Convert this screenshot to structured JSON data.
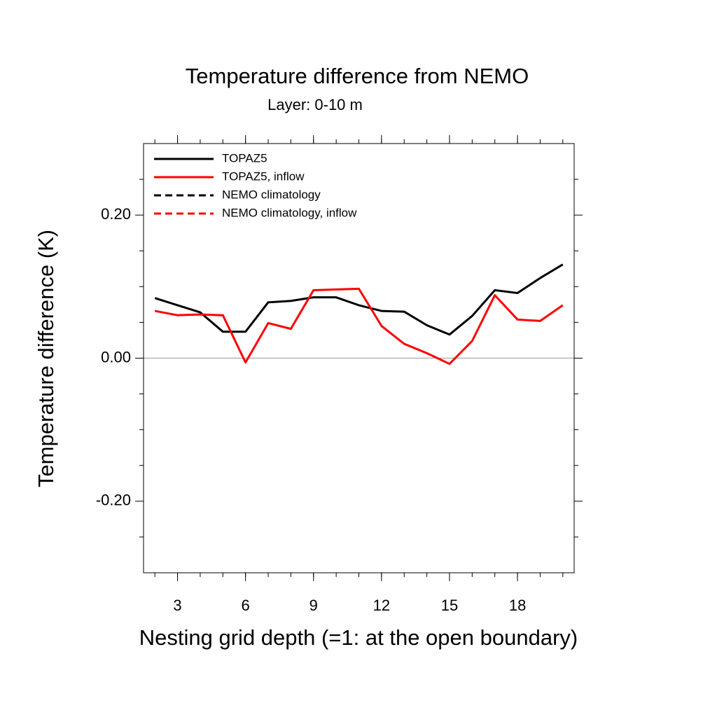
{
  "chart_data": {
    "type": "line",
    "title": "Temperature difference from NEMO",
    "subtitle": "Layer: 0-10 m",
    "x_label": "Nesting grid depth (=1: at the open boundary)",
    "y_label": "Temperature difference (K)",
    "x": [
      2,
      3,
      4,
      5,
      6,
      7,
      8,
      9,
      10,
      11,
      12,
      13,
      14,
      15,
      16,
      17,
      18,
      19,
      20
    ],
    "series": [
      {
        "name": "TOPAZ5",
        "color": "#000000",
        "dash": false,
        "values": [
          0.084,
          0.074,
          0.064,
          0.037,
          0.037,
          0.078,
          0.08,
          0.085,
          0.085,
          0.074,
          0.066,
          0.065,
          0.046,
          0.033,
          0.059,
          0.095,
          0.091,
          0.112,
          0.131
        ]
      },
      {
        "name": "TOPAZ5, inflow",
        "color": "#ff0000",
        "dash": false,
        "values": [
          0.066,
          0.06,
          0.061,
          0.06,
          -0.006,
          0.049,
          0.041,
          0.095,
          0.096,
          0.097,
          0.045,
          0.02,
          0.007,
          -0.008,
          0.024,
          0.088,
          0.054,
          0.052,
          0.074
        ]
      },
      {
        "name": "NEMO climatology",
        "color": "#000000",
        "dash": true,
        "values": [
          null,
          null,
          null,
          null,
          null,
          null,
          null,
          null,
          null,
          null,
          null,
          null,
          null,
          null,
          null,
          null,
          null,
          null,
          null
        ]
      },
      {
        "name": "NEMO climatology, inflow",
        "color": "#ff0000",
        "dash": true,
        "values": [
          null,
          null,
          null,
          null,
          null,
          null,
          null,
          null,
          null,
          null,
          null,
          null,
          null,
          null,
          null,
          null,
          null,
          null,
          null
        ]
      }
    ],
    "xlim": [
      1.5,
      20.5
    ],
    "xticks": [
      3,
      6,
      9,
      12,
      15,
      18
    ],
    "xminor_ticks": [
      2,
      3,
      4,
      5,
      6,
      7,
      8,
      9,
      10,
      11,
      12,
      13,
      14,
      15,
      16,
      17,
      18,
      19,
      20
    ],
    "ylim": [
      -0.3,
      0.3
    ],
    "yticks": [
      {
        "value": 0.2,
        "label": "0.20"
      },
      {
        "value": 0,
        "label": "0.00"
      },
      {
        "value": -0.2,
        "label": "-0.20"
      }
    ],
    "yminor_ticks": [
      -0.25,
      -0.15,
      -0.1,
      -0.05,
      0.05,
      0.1,
      0.15,
      0.25
    ],
    "zero_line": true,
    "legend": "upper-left"
  }
}
